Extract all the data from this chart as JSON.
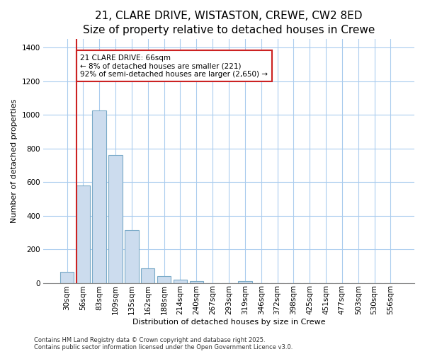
{
  "title1": "21, CLARE DRIVE, WISTASTON, CREWE, CW2 8ED",
  "title2": "Size of property relative to detached houses in Crewe",
  "xlabel": "Distribution of detached houses by size in Crewe",
  "ylabel": "Number of detached properties",
  "categories": [
    "30sqm",
    "56sqm",
    "83sqm",
    "109sqm",
    "135sqm",
    "162sqm",
    "188sqm",
    "214sqm",
    "240sqm",
    "267sqm",
    "293sqm",
    "319sqm",
    "346sqm",
    "372sqm",
    "398sqm",
    "425sqm",
    "451sqm",
    "477sqm",
    "503sqm",
    "530sqm",
    "556sqm"
  ],
  "values": [
    65,
    580,
    1025,
    760,
    315,
    85,
    40,
    20,
    10,
    0,
    0,
    12,
    0,
    0,
    0,
    0,
    0,
    0,
    0,
    0,
    0
  ],
  "bar_color": "#ccdcee",
  "bar_edge_color": "#7aaac8",
  "vline_x_index": 1,
  "vline_color": "#cc2222",
  "annotation_text": "21 CLARE DRIVE: 66sqm\n← 8% of detached houses are smaller (221)\n92% of semi-detached houses are larger (2,650) →",
  "annotation_box_facecolor": "#ffffff",
  "annotation_box_edgecolor": "#cc2222",
  "ylim": [
    0,
    1450
  ],
  "yticks": [
    0,
    200,
    400,
    600,
    800,
    1000,
    1200,
    1400
  ],
  "footer1": "Contains HM Land Registry data © Crown copyright and database right 2025.",
  "footer2": "Contains public sector information licensed under the Open Government Licence v3.0.",
  "fig_bg_color": "#ffffff",
  "plot_bg_color": "#ffffff",
  "grid_color": "#aaccee",
  "title_fontsize": 11,
  "subtitle_fontsize": 9.5,
  "axis_label_fontsize": 8,
  "tick_fontsize": 7.5,
  "annotation_fontsize": 7.5,
  "footer_fontsize": 6
}
